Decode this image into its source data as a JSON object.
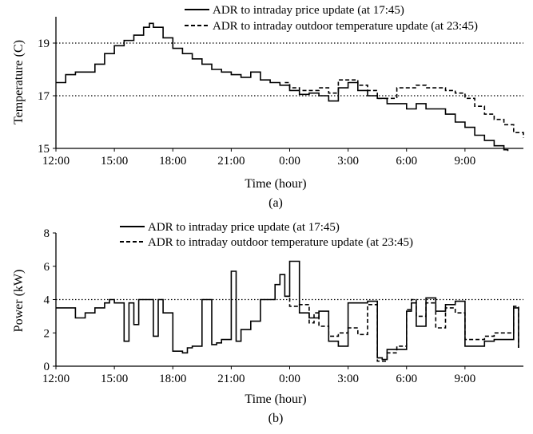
{
  "chart_data": [
    {
      "type": "line",
      "caption": "(a)",
      "xlabel": "Time (hour)",
      "ylabel": "Temperature  (C)",
      "x_ticks": [
        "12:00",
        "15:00",
        "18:00",
        "21:00",
        "0:00",
        "3:00",
        "6:00",
        "9:00"
      ],
      "y_ticks": [
        15,
        17,
        19
      ],
      "xlim": [
        12,
        36
      ],
      "ylim": [
        15,
        20
      ],
      "reference_lines": [
        17,
        19
      ],
      "legend_position": "top",
      "colors": {
        "line": "#000000",
        "reference": "#000000"
      },
      "series": [
        {
          "name": "ADR to intraday price update (at 17:45)",
          "style": "solid",
          "x": [
            12,
            12.5,
            13,
            13.5,
            14,
            14.5,
            15,
            15.5,
            16,
            16.5,
            16.8,
            17,
            17.5,
            18,
            18.5,
            19,
            19.5,
            20,
            20.5,
            21,
            21.5,
            22,
            22.5,
            23,
            23.5,
            24,
            24.5,
            25,
            25.5,
            26,
            26.5,
            27,
            27.5,
            28,
            28.5,
            29,
            29.5,
            30,
            30.5,
            31,
            31.5,
            32,
            32.5,
            33,
            33.5,
            34,
            34.5,
            35,
            35.2
          ],
          "y": [
            17.5,
            17.8,
            17.9,
            17.9,
            18.2,
            18.6,
            18.9,
            19.1,
            19.3,
            19.6,
            19.75,
            19.6,
            19.2,
            18.8,
            18.6,
            18.4,
            18.2,
            18.0,
            17.9,
            17.8,
            17.7,
            17.9,
            17.6,
            17.5,
            17.4,
            17.2,
            17.05,
            17.1,
            17.0,
            16.8,
            17.3,
            17.5,
            17.2,
            17.0,
            16.9,
            16.7,
            16.7,
            16.5,
            16.7,
            16.5,
            16.5,
            16.3,
            16.0,
            15.8,
            15.5,
            15.3,
            15.1,
            14.95,
            14.9
          ]
        },
        {
          "name": "ADR to intraday outdoor temperature update (at 23:45)",
          "style": "dashed",
          "x": [
            23.75,
            24,
            24.5,
            25,
            25.5,
            26,
            26.5,
            27,
            27.5,
            28,
            28.5,
            29,
            29.5,
            30,
            30.5,
            31,
            31.5,
            32,
            32.5,
            33,
            33.5,
            34,
            34.5,
            35,
            35.5,
            36
          ],
          "y": [
            17.5,
            17.3,
            17.2,
            17.2,
            17.3,
            17.1,
            17.6,
            17.6,
            17.4,
            17.2,
            16.9,
            16.9,
            17.3,
            17.3,
            17.4,
            17.3,
            17.3,
            17.2,
            17.1,
            16.9,
            16.6,
            16.3,
            16.1,
            15.9,
            15.6,
            15.4
          ]
        }
      ]
    },
    {
      "type": "line",
      "caption": "(b)",
      "xlabel": "Time (hour)",
      "ylabel": "Power  (kW)",
      "x_ticks": [
        "12:00",
        "15:00",
        "18:00",
        "21:00",
        "0:00",
        "3:00",
        "6:00",
        "9:00"
      ],
      "y_ticks": [
        0,
        2,
        4,
        6,
        8
      ],
      "xlim": [
        12,
        36
      ],
      "ylim": [
        0,
        8
      ],
      "reference_lines": [
        4
      ],
      "legend_position": "top",
      "colors": {
        "line": "#000000",
        "reference": "#000000"
      },
      "series": [
        {
          "name": "ADR to intraday price update (at 17:45)",
          "style": "solid",
          "x": [
            12,
            12.5,
            13,
            13.5,
            14,
            14.5,
            14.75,
            15,
            15.5,
            15.75,
            16,
            16.25,
            16.5,
            17,
            17.25,
            17.5,
            18,
            18.5,
            18.75,
            19,
            19.5,
            20,
            20.25,
            20.5,
            21,
            21.25,
            21.5,
            22,
            22.5,
            23,
            23.25,
            23.5,
            23.75,
            24,
            24.5,
            25,
            25.5,
            26,
            26.5,
            27,
            27.5,
            28,
            28.5,
            28.75,
            29,
            29.5,
            30,
            30.25,
            30.5,
            31,
            31.5,
            32,
            32.5,
            33,
            33.5,
            34,
            34.5,
            35,
            35.5,
            35.75
          ],
          "y": [
            3.5,
            3.5,
            2.9,
            3.2,
            3.5,
            3.8,
            4.0,
            3.8,
            1.5,
            3.8,
            2.5,
            4.0,
            4.0,
            1.8,
            4.0,
            3.2,
            0.9,
            0.8,
            1.1,
            1.2,
            4.0,
            1.3,
            1.4,
            1.6,
            5.7,
            1.5,
            2.2,
            2.7,
            4.0,
            4.0,
            4.9,
            5.5,
            4.2,
            6.3,
            3.2,
            2.9,
            3.3,
            1.5,
            1.2,
            3.8,
            3.8,
            3.9,
            0.5,
            0.4,
            1.0,
            1.0,
            3.3,
            3.8,
            2.4,
            4.1,
            3.3,
            3.7,
            3.9,
            1.2,
            1.2,
            1.5,
            1.6,
            1.6,
            3.5,
            1.1
          ]
        },
        {
          "name": "ADR to intraday outdoor temperature update (at 23:45)",
          "style": "dashed",
          "x": [
            23.75,
            24,
            24.5,
            25,
            25.25,
            25.5,
            26,
            26.5,
            27,
            27.5,
            28,
            28.5,
            29,
            29.5,
            30,
            30.25,
            30.5,
            31,
            31.5,
            32,
            32.5,
            33,
            33.5,
            34,
            34.5,
            35,
            35.5,
            35.75
          ],
          "y": [
            4.2,
            3.6,
            3.7,
            2.6,
            3.2,
            2.4,
            1.8,
            2.0,
            2.3,
            1.9,
            3.7,
            0.3,
            0.8,
            1.2,
            3.4,
            4.0,
            3.0,
            3.8,
            2.3,
            3.5,
            3.2,
            1.6,
            1.6,
            1.8,
            2.0,
            2.0,
            3.6,
            1.1
          ]
        }
      ]
    }
  ]
}
